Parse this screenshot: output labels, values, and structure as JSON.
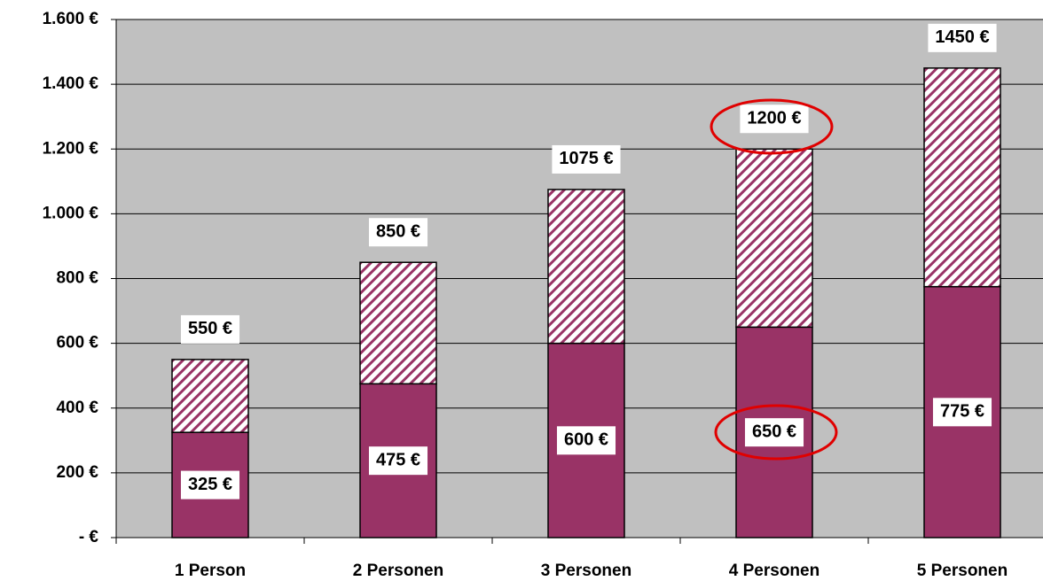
{
  "chart_data": {
    "type": "stacked_bar",
    "categories": [
      "1 Person",
      "2 Personen",
      "3 Personen",
      "4 Personen",
      "5 Personen"
    ],
    "series": [
      {
        "color": "#993366",
        "values": [
          325,
          475,
          600,
          650,
          775
        ],
        "value_labels": [
          "325 €",
          "475 €",
          "600 €",
          "650 €",
          "775 €"
        ]
      },
      {
        "color": "#993366",
        "pattern": "hatched",
        "values": [
          225,
          375,
          475,
          550,
          675
        ]
      }
    ],
    "totals": {
      "values": [
        550,
        850,
        1075,
        1200,
        1450
      ],
      "value_labels": [
        "550 €",
        "850 €",
        "1075 €",
        "1200 €",
        "1450 €"
      ]
    },
    "ylim": [
      0,
      1600
    ],
    "yticks": [
      {
        "value": 0,
        "label": "- €"
      },
      {
        "value": 200,
        "label": "200 €"
      },
      {
        "value": 400,
        "label": "400 €"
      },
      {
        "value": 600,
        "label": "600 €"
      },
      {
        "value": 800,
        "label": "800 €"
      },
      {
        "value": 1000,
        "label": "1.000 €"
      },
      {
        "value": 1200,
        "label": "1.200 €"
      },
      {
        "value": 1400,
        "label": "1.400 €"
      },
      {
        "value": 1600,
        "label": "1.600 €"
      }
    ],
    "grid": true
  }
}
